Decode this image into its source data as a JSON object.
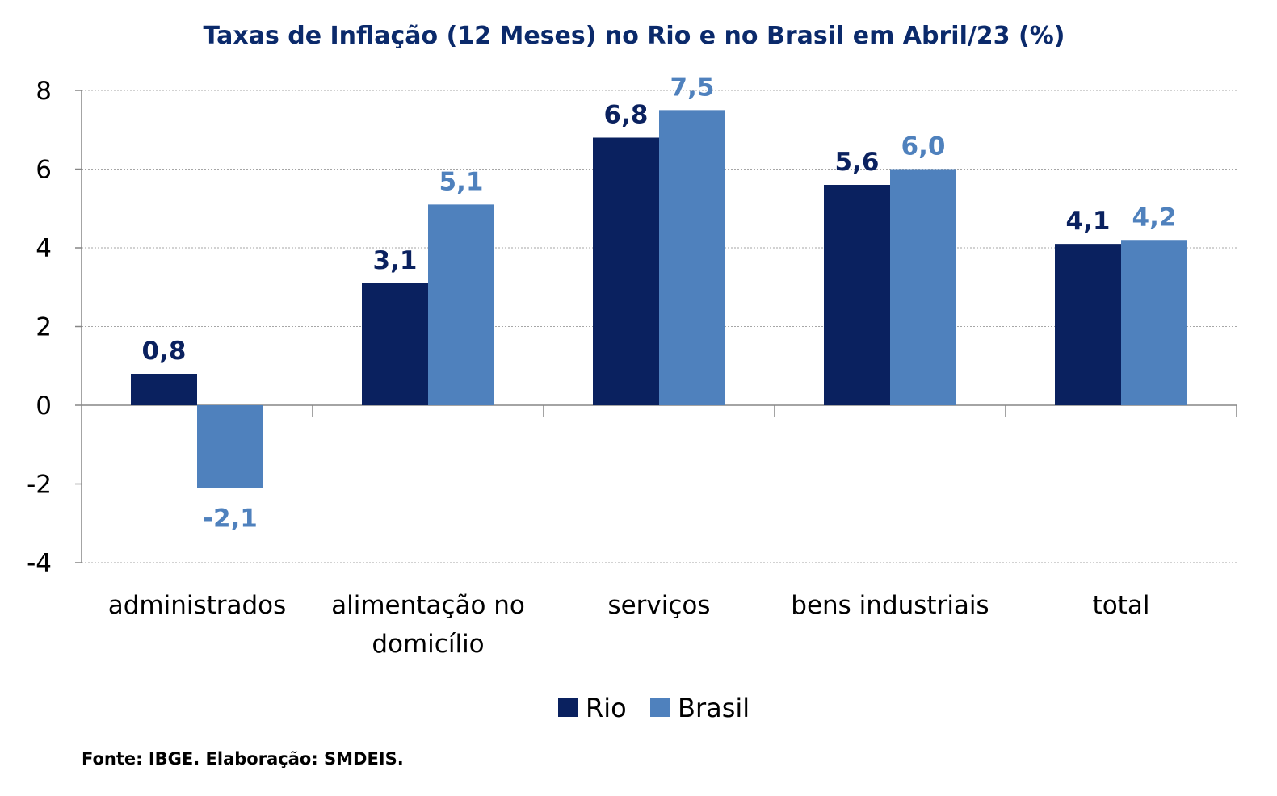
{
  "chart_data": {
    "type": "bar",
    "title": "Taxas de Inflação (12 Meses) no Rio e no Brasil em Abril/23 (%)",
    "xlabel": "",
    "ylabel": "",
    "categories": [
      "administrados",
      "alimentação no domicílio",
      "serviços",
      "bens industriais",
      "total"
    ],
    "category_lines": [
      [
        "administrados"
      ],
      [
        "alimentação no",
        "domicílio"
      ],
      [
        "serviços"
      ],
      [
        "bens industriais"
      ],
      [
        "total"
      ]
    ],
    "series": [
      {
        "name": "Rio",
        "color": "#0a215f",
        "label_color": "#0a215f",
        "values": [
          0.8,
          3.1,
          6.8,
          5.6,
          4.1
        ],
        "labels": [
          "0,8",
          "3,1",
          "6,8",
          "5,6",
          "4,1"
        ]
      },
      {
        "name": "Brasil",
        "color": "#4f81bd",
        "label_color": "#4f81bd",
        "values": [
          -2.1,
          5.1,
          7.5,
          6.0,
          4.2
        ],
        "labels": [
          "-2,1",
          "5,1",
          "7,5",
          "6,0",
          "4,2"
        ]
      }
    ],
    "ylim": [
      -4,
      8
    ],
    "yticks": [
      8,
      6,
      4,
      2,
      0,
      -2,
      -4
    ],
    "ytick_labels": [
      "8",
      "6",
      "4",
      "2",
      "0",
      "-2",
      "-4"
    ],
    "grid": true,
    "legend": "bottom-center"
  },
  "source": "Fonte: IBGE. Elaboração: SMDEIS."
}
